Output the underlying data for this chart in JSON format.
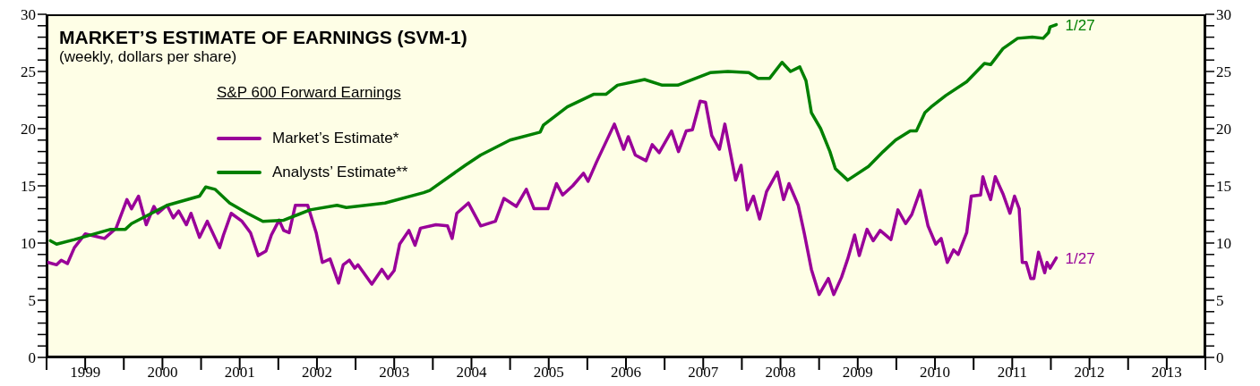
{
  "chart_data": {
    "type": "line",
    "title": "MARKET’S ESTIMATE OF EARNINGS (SVM-1)",
    "subtitle": "(weekly, dollars per share)",
    "legend_title": "S&P 600 Forward Earnings",
    "legend": "top left",
    "grid": false,
    "marker": "none",
    "line_style": "solid",
    "xlim": [
      1999,
      2014
    ],
    "xticks": [
      {
        "value": 1999,
        "label": null
      },
      {
        "value": 1999.5,
        "label": "1999"
      },
      {
        "value": 2000,
        "label": null
      },
      {
        "value": 2000.5,
        "label": "2000"
      },
      {
        "value": 2001,
        "label": null
      },
      {
        "value": 2001.5,
        "label": "2001"
      },
      {
        "value": 2002,
        "label": null
      },
      {
        "value": 2002.5,
        "label": "2002"
      },
      {
        "value": 2003,
        "label": null
      },
      {
        "value": 2003.5,
        "label": "2003"
      },
      {
        "value": 2004,
        "label": null
      },
      {
        "value": 2004.5,
        "label": "2004"
      },
      {
        "value": 2005,
        "label": null
      },
      {
        "value": 2005.5,
        "label": "2005"
      },
      {
        "value": 2006,
        "label": null
      },
      {
        "value": 2006.5,
        "label": "2006"
      },
      {
        "value": 2007,
        "label": null
      },
      {
        "value": 2007.5,
        "label": "2007"
      },
      {
        "value": 2008,
        "label": null
      },
      {
        "value": 2008.5,
        "label": "2008"
      },
      {
        "value": 2009,
        "label": null
      },
      {
        "value": 2009.5,
        "label": "2009"
      },
      {
        "value": 2010,
        "label": null
      },
      {
        "value": 2010.5,
        "label": "2010"
      },
      {
        "value": 2011,
        "label": null
      },
      {
        "value": 2011.5,
        "label": "2011"
      },
      {
        "value": 2012,
        "label": null
      },
      {
        "value": 2012.5,
        "label": "2012"
      },
      {
        "value": 2013,
        "label": null
      },
      {
        "value": 2013.5,
        "label": "2013"
      },
      {
        "value": 2014,
        "label": null
      }
    ],
    "ylim": [
      0,
      30
    ],
    "yticks": [
      0,
      {
        "value": 1,
        "label": null
      },
      {
        "value": 2,
        "label": null
      },
      {
        "value": 3,
        "label": null
      },
      {
        "value": 4,
        "label": null
      },
      5,
      {
        "value": 6,
        "label": null
      },
      {
        "value": 7,
        "label": null
      },
      {
        "value": 8,
        "label": null
      },
      {
        "value": 9,
        "label": null
      },
      10,
      {
        "value": 11,
        "label": null
      },
      {
        "value": 12,
        "label": null
      },
      {
        "value": 13,
        "label": null
      },
      {
        "value": 14,
        "label": null
      },
      15,
      {
        "value": 16,
        "label": null
      },
      {
        "value": 17,
        "label": null
      },
      {
        "value": 18,
        "label": null
      },
      {
        "value": 19,
        "label": null
      },
      20,
      {
        "value": 21,
        "label": null
      },
      {
        "value": 22,
        "label": null
      },
      {
        "value": 23,
        "label": null
      },
      {
        "value": 24,
        "label": null
      },
      25,
      {
        "value": 26,
        "label": null
      },
      {
        "value": 27,
        "label": null
      },
      {
        "value": 28,
        "label": null
      },
      {
        "value": 29,
        "label": null
      },
      30
    ],
    "y2lim": [
      0,
      30
    ],
    "y2ticks": [
      0,
      {
        "value": 1,
        "label": null
      },
      {
        "value": 2,
        "label": null
      },
      {
        "value": 3,
        "label": null
      },
      {
        "value": 4,
        "label": null
      },
      5,
      {
        "value": 6,
        "label": null
      },
      {
        "value": 7,
        "label": null
      },
      {
        "value": 8,
        "label": null
      },
      {
        "value": 9,
        "label": null
      },
      10,
      {
        "value": 11,
        "label": null
      },
      {
        "value": 12,
        "label": null
      },
      {
        "value": 13,
        "label": null
      },
      {
        "value": 14,
        "label": null
      },
      15,
      {
        "value": 16,
        "label": null
      },
      {
        "value": 17,
        "label": null
      },
      {
        "value": 18,
        "label": null
      },
      {
        "value": 19,
        "label": null
      },
      20,
      {
        "value": 21,
        "label": null
      },
      {
        "value": 22,
        "label": null
      },
      {
        "value": 23,
        "label": null
      },
      {
        "value": 24,
        "label": null
      },
      25,
      {
        "value": 26,
        "label": null
      },
      {
        "value": 27,
        "label": null
      },
      {
        "value": 28,
        "label": null
      },
      {
        "value": 29,
        "label": null
      },
      30
    ],
    "series": [
      {
        "name": "Market’s Estimate*",
        "color": "#990099",
        "x": [
          1999.02,
          1999.13,
          1999.19,
          1999.27,
          1999.36,
          1999.5,
          1999.75,
          1999.9,
          2000.04,
          2000.1,
          2000.19,
          2000.29,
          2000.39,
          2000.44,
          2000.56,
          2000.64,
          2000.71,
          2000.81,
          2000.87,
          2000.98,
          2001.08,
          2001.24,
          2001.29,
          2001.39,
          2001.53,
          2001.64,
          2001.74,
          2001.84,
          2001.91,
          2002.01,
          2002.07,
          2002.14,
          2002.22,
          2002.38,
          2002.49,
          2002.57,
          2002.67,
          2002.78,
          2002.84,
          2002.92,
          2002.99,
          2003.03,
          2003.21,
          2003.34,
          2003.42,
          2003.5,
          2003.57,
          2003.69,
          2003.77,
          2003.84,
          2004.04,
          2004.19,
          2004.25,
          2004.31,
          2004.46,
          2004.62,
          2004.81,
          2004.92,
          2005.08,
          2005.21,
          2005.31,
          2005.49,
          2005.6,
          2005.68,
          2005.81,
          2005.95,
          2006.01,
          2006.12,
          2006.35,
          2006.47,
          2006.53,
          2006.62,
          2006.76,
          2006.84,
          2006.93,
          2007.09,
          2007.18,
          2007.28,
          2007.36,
          2007.46,
          2007.53,
          2007.61,
          2007.71,
          2007.78,
          2007.92,
          2007.99,
          2008.07,
          2008.15,
          2008.23,
          2008.32,
          2008.46,
          2008.54,
          2008.61,
          2008.73,
          2008.81,
          2008.9,
          2009.0,
          2009.12,
          2009.19,
          2009.29,
          2009.37,
          2009.46,
          2009.52,
          2009.62,
          2009.7,
          2009.79,
          2009.93,
          2010.02,
          2010.12,
          2010.2,
          2010.31,
          2010.41,
          2010.51,
          2010.58,
          2010.66,
          2010.74,
          2010.8,
          2010.91,
          2010.97,
          2011.09,
          2011.12,
          2011.16,
          2011.22,
          2011.28,
          2011.38,
          2011.47,
          2011.53,
          2011.59,
          2011.63,
          2011.68,
          2011.74,
          2011.78,
          2011.84,
          2011.92,
          2011.95,
          2011.99,
          2012.07
        ],
        "values": [
          8.3,
          8.1,
          8.5,
          8.2,
          9.6,
          10.8,
          10.4,
          11.3,
          13.8,
          13.0,
          14.1,
          11.6,
          13.2,
          12.6,
          13.3,
          12.2,
          12.8,
          11.6,
          12.6,
          10.5,
          11.9,
          9.6,
          10.7,
          12.6,
          11.9,
          10.9,
          8.9,
          9.3,
          10.7,
          12.0,
          11.1,
          10.9,
          13.3,
          13.3,
          10.9,
          8.3,
          8.6,
          6.5,
          8.1,
          8.5,
          7.8,
          8.1,
          6.4,
          7.7,
          6.9,
          7.6,
          9.9,
          11.1,
          9.8,
          11.3,
          11.6,
          11.5,
          10.4,
          12.6,
          13.5,
          11.5,
          11.9,
          13.9,
          13.2,
          14.7,
          13.0,
          13.0,
          15.2,
          14.2,
          15.0,
          16.1,
          15.4,
          17.1,
          20.4,
          18.2,
          19.3,
          17.7,
          17.2,
          18.6,
          17.9,
          19.8,
          18.0,
          19.8,
          19.9,
          22.4,
          22.3,
          19.4,
          18.2,
          20.4,
          15.5,
          16.8,
          12.9,
          14.1,
          12.1,
          14.5,
          16.2,
          13.8,
          15.2,
          13.3,
          10.8,
          7.7,
          5.5,
          6.9,
          5.5,
          7.0,
          8.6,
          10.7,
          8.9,
          11.2,
          10.2,
          11.1,
          10.3,
          12.9,
          11.7,
          12.5,
          14.6,
          11.5,
          9.9,
          10.4,
          8.3,
          9.4,
          9.0,
          10.9,
          14.1,
          14.2,
          15.8,
          14.9,
          13.8,
          15.8,
          14.3,
          12.6,
          14.1,
          13.0,
          8.3,
          8.3,
          6.9,
          6.9,
          9.2,
          7.4,
          8.3,
          7.8,
          8.7
        ]
      },
      {
        "name": "Analysts’ Estimate**",
        "color": "#008000",
        "x": [
          1999.05,
          1999.13,
          1999.36,
          1999.83,
          2000.02,
          2000.1,
          2000.56,
          2000.98,
          2001.06,
          2001.18,
          2001.37,
          2001.6,
          2001.8,
          2002.07,
          2002.26,
          2002.41,
          2002.76,
          2002.88,
          2003.38,
          2003.88,
          2003.96,
          2004.42,
          2004.62,
          2005.0,
          2005.39,
          2005.43,
          2005.74,
          2006.08,
          2006.24,
          2006.39,
          2006.74,
          2006.97,
          2007.17,
          2007.59,
          2007.82,
          2008.09,
          2008.21,
          2008.36,
          2008.52,
          2008.63,
          2008.75,
          2008.83,
          2008.9,
          2009.02,
          2009.14,
          2009.21,
          2009.37,
          2009.64,
          2009.83,
          2009.99,
          2010.18,
          2010.26,
          2010.37,
          2010.45,
          2010.64,
          2010.91,
          2011.14,
          2011.22,
          2011.38,
          2011.57,
          2011.76,
          2011.9,
          2011.97,
          2011.99,
          2012.07
        ],
        "values": [
          10.2,
          9.9,
          10.3,
          11.2,
          11.2,
          11.7,
          13.3,
          14.1,
          14.9,
          14.7,
          13.5,
          12.6,
          11.9,
          12.0,
          12.5,
          12.9,
          13.3,
          13.1,
          13.5,
          14.4,
          14.6,
          16.8,
          17.7,
          19.0,
          19.7,
          20.3,
          21.9,
          23.0,
          23.0,
          23.8,
          24.3,
          23.8,
          23.8,
          24.9,
          25.0,
          24.9,
          24.4,
          24.4,
          25.8,
          25.0,
          25.4,
          24.2,
          21.4,
          20.0,
          18.0,
          16.5,
          15.5,
          16.7,
          18.0,
          19.0,
          19.8,
          19.8,
          21.4,
          21.9,
          22.9,
          24.1,
          25.7,
          25.6,
          27.0,
          27.9,
          28.0,
          27.9,
          28.4,
          28.9,
          29.1
        ]
      }
    ],
    "annotations": [
      {
        "text": "1/27",
        "x": 2012.07,
        "y": 29.1
      },
      {
        "text": "1/27",
        "x": 2012.07,
        "y": 8.7
      }
    ]
  }
}
